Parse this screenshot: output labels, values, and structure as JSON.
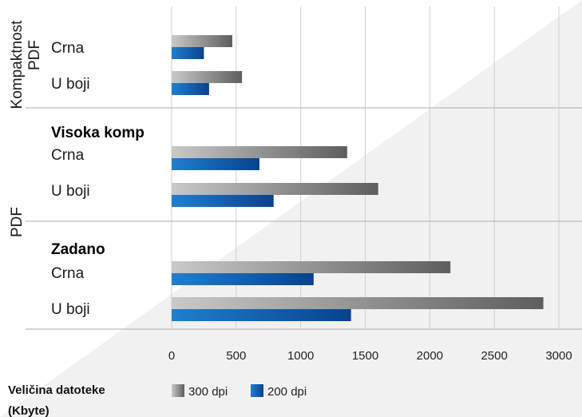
{
  "chart_data": {
    "type": "bar",
    "orientation": "horizontal",
    "xlim": [
      0,
      3000
    ],
    "x_ticks": [
      "0",
      "500",
      "1000",
      "1500",
      "2000",
      "2500",
      "3000"
    ],
    "grid": "vertical",
    "groups": [
      {
        "side_label_lines": [
          "Kompaktnost",
          "PDF"
        ],
        "title": "",
        "rows": [
          {
            "label": "Crna",
            "values": [
              470,
              250
            ]
          },
          {
            "label": "U boji",
            "values": [
              545,
              290
            ]
          }
        ]
      },
      {
        "side_label_lines": [
          "PDF"
        ],
        "title": "Visoka komp",
        "rows": [
          {
            "label": "Crna",
            "values": [
              1360,
              680
            ]
          },
          {
            "label": "U boji",
            "values": [
              1600,
              790
            ]
          }
        ]
      },
      {
        "side_label_lines": [],
        "title": "Zadano",
        "rows": [
          {
            "label": "Crna",
            "values": [
              2160,
              1100
            ]
          },
          {
            "label": "U boji",
            "values": [
              2880,
              1390
            ]
          }
        ]
      }
    ],
    "series": [
      {
        "name": "300 dpi",
        "color": "#7a7a7a"
      },
      {
        "name": "200 dpi",
        "color": "#0d5cab"
      }
    ],
    "xlabel_lines": [
      "Veličina datoteke",
      "(Kbyte)"
    ],
    "legend_position": "bottom"
  }
}
